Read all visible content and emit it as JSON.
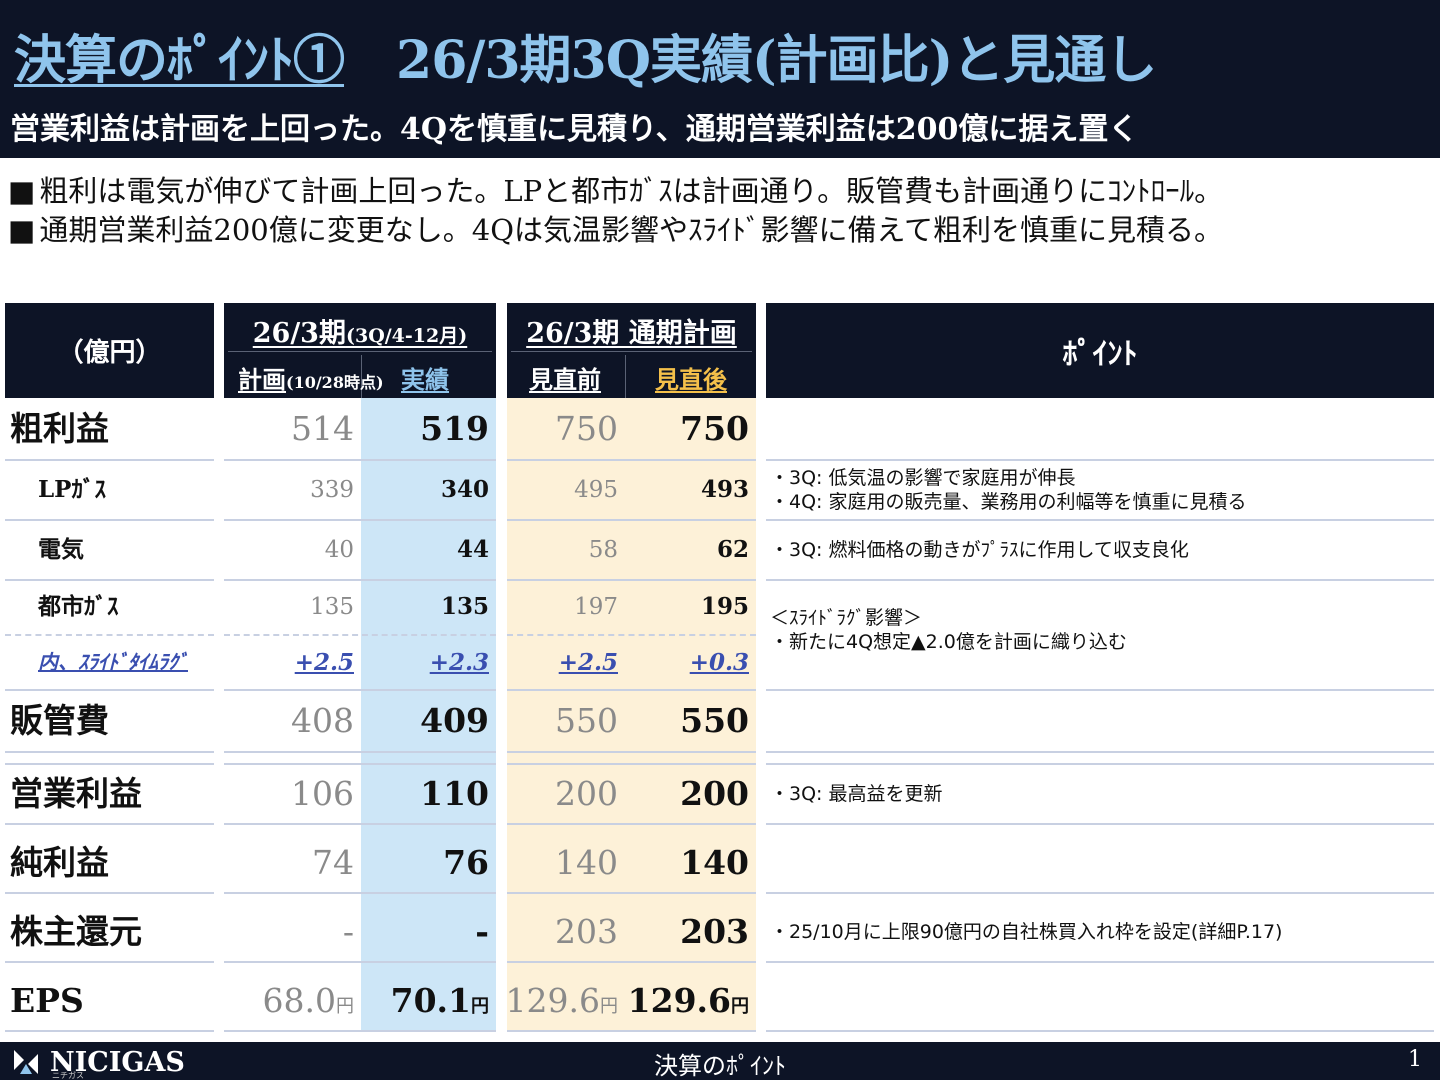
{
  "header": {
    "title_part1": "決算のﾎﾟｲﾝﾄ①",
    "title_part2": "26/3期3Q実績(計画比)と見通し",
    "subtitle": "営業利益は計画を上回った。4Qを慎重に見積り、通期営業利益は200億に据え置く"
  },
  "bullets": [
    "粗利は電気が伸びて計画上回った。LPと都市ｶﾞｽは計画通り。販管費も計画通りにｺﾝﾄﾛｰﾙ。",
    "通期営業利益200億に変更なし。4Qは気温影響やｽﾗｲﾄﾞ影響に備えて粗利を慎重に見積る。"
  ],
  "bullet_marker": "■",
  "table": {
    "unit_label": "（億円）",
    "q3_header": "26/3期",
    "q3_header_small": "(3Q/4-12月)",
    "q3_plan_label": "計画",
    "q3_plan_note": "(10/28時点)",
    "q3_actual_label": "実績",
    "full_header": "26/3期 通期計画",
    "full_before_label": "見直前",
    "full_after_label": "見直後",
    "point_header": "ﾎﾟｲﾝﾄ",
    "rows": [
      {
        "label": "粗利益",
        "plan": "514",
        "actual": "519",
        "before": "750",
        "after": "750"
      },
      {
        "label": "LPｶﾞｽ",
        "plan": "339",
        "actual": "340",
        "before": "495",
        "after": "493",
        "point1": "・3Q: 低気温の影響で家庭用が伸長",
        "point2": "・4Q: 家庭用の販売量、業務用の利幅等を慎重に見積る"
      },
      {
        "label": "電気",
        "plan": "40",
        "actual": "44",
        "before": "58",
        "after": "62",
        "point1": "・3Q: 燃料価格の動きがﾌﾟﾗｽに作用して収支良化"
      },
      {
        "label": "都市ｶﾞｽ",
        "plan": "135",
        "actual": "135",
        "before": "197",
        "after": "195",
        "point1": "＜ｽﾗｲﾄﾞﾗｸﾞ影響＞",
        "point2": "・新たに4Q想定▲2.0億を計画に織り込む"
      },
      {
        "label": "内、ｽﾗｲﾄﾞﾀｲﾑﾗｸﾞ",
        "plan": "+2.5",
        "actual": "+2.3",
        "before": "+2.5",
        "after": "+0.3"
      },
      {
        "label": "販管費",
        "plan": "408",
        "actual": "409",
        "before": "550",
        "after": "550"
      },
      {
        "label": "営業利益",
        "plan": "106",
        "actual": "110",
        "before": "200",
        "after": "200",
        "point1": "・3Q: 最高益を更新"
      },
      {
        "label": "純利益",
        "plan": "74",
        "actual": "76",
        "before": "140",
        "after": "140"
      },
      {
        "label": "株主還元",
        "plan": "-",
        "actual": "-",
        "before": "203",
        "after": "203",
        "point1": "・25/10月に上限90億円の自社株買入れ枠を設定(詳細P.17)"
      },
      {
        "label": "EPS",
        "plan": "68.0",
        "actual": "70.1",
        "before": "129.6",
        "after": "129.6",
        "unit": "円"
      }
    ]
  },
  "footer": {
    "logo_text": "NICIGAS",
    "logo_sub": "ニチガス",
    "title": "決算のﾎﾟｲﾝﾄ",
    "page": "1"
  },
  "colors": {
    "navy": "#0d1426",
    "title_blue": "#8fc4ec",
    "actual_bg": "#cde6f7",
    "full_bg": "#fdf1d8",
    "after_label": "#f4c04a",
    "slide_blue": "#3a4fb0"
  }
}
